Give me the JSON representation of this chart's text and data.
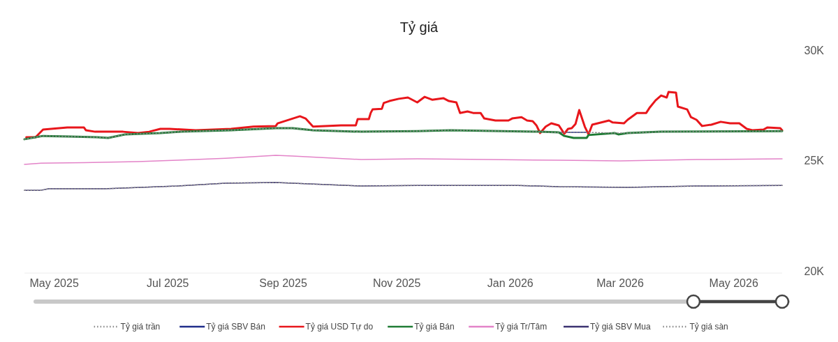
{
  "chart_data": {
    "type": "line",
    "title": "Tỷ giá",
    "legend": "bottom",
    "grid": false,
    "xlim": [
      "2025-04-15",
      "2026-05-27"
    ],
    "xticks": [
      {
        "value": "2025-05-01",
        "label": "May 2025"
      },
      {
        "value": "2025-07-01",
        "label": "Jul 2025"
      },
      {
        "value": "2025-09-01",
        "label": "Sep 2025"
      },
      {
        "value": "2025-11-01",
        "label": "Nov 2025"
      },
      {
        "value": "2026-01-01",
        "label": "Jan 2026"
      },
      {
        "value": "2026-03-01",
        "label": "Mar 2026"
      },
      {
        "value": "2026-05-01",
        "label": "May 2026"
      }
    ],
    "ylim": [
      20000,
      30000
    ],
    "yticks": [
      {
        "value": 20000,
        "label": "20K"
      },
      {
        "value": 25000,
        "label": "25K"
      },
      {
        "value": 30000,
        "label": "30K"
      }
    ],
    "series": [
      {
        "name": "Tỷ giá trần",
        "color": "#8a8a8a",
        "line_style": "dotted",
        "x": [
          "2025-04-15",
          "2025-04-21",
          "2025-04-25",
          "2025-05-09",
          "2025-05-24",
          "2025-05-30",
          "2025-06-08",
          "2025-06-27",
          "2025-07-08",
          "2025-08-04",
          "2025-08-28",
          "2025-09-06",
          "2025-09-17",
          "2025-10-13",
          "2025-11-12",
          "2025-11-30",
          "2026-01-16",
          "2026-01-27",
          "2026-01-30",
          "2026-02-04",
          "2026-02-11",
          "2026-02-12",
          "2026-02-26",
          "2026-02-28",
          "2026-03-05",
          "2026-03-23",
          "2026-05-27"
        ],
        "values": [
          26060,
          26150,
          26210,
          26180,
          26150,
          26120,
          26280,
          26340,
          26400,
          26470,
          26560,
          26560,
          26470,
          26400,
          26430,
          26470,
          26400,
          26370,
          26370,
          26370,
          26370,
          26370,
          26340,
          26340,
          26340,
          26400,
          26430
        ]
      },
      {
        "name": "Tỷ giá SBV Bán",
        "color": "#1f2d8a",
        "line_style": "solid",
        "x": [
          "2026-01-27",
          "2026-01-30",
          "2026-02-04",
          "2026-02-11",
          "2026-02-12"
        ],
        "values": [
          26370,
          26370,
          26370,
          26370,
          26370
        ]
      },
      {
        "name": "Tỷ giá USD Tự do",
        "color": "#e8161b",
        "line_style": "solid",
        "x": [
          "2025-04-16",
          "2025-04-21",
          "2025-04-25",
          "2025-05-08",
          "2025-05-17",
          "2025-05-18",
          "2025-05-23",
          "2025-06-07",
          "2025-06-15",
          "2025-06-21",
          "2025-06-27",
          "2025-07-02",
          "2025-07-16",
          "2025-08-04",
          "2025-08-16",
          "2025-08-28",
          "2025-08-29",
          "2025-09-10",
          "2025-09-13",
          "2025-09-17",
          "2025-10-02",
          "2025-10-10",
          "2025-10-11",
          "2025-10-17",
          "2025-10-18",
          "2025-10-19",
          "2025-10-24",
          "2025-10-25",
          "2025-10-28",
          "2025-11-02",
          "2025-11-07",
          "2025-11-12",
          "2025-11-16",
          "2025-11-20",
          "2025-11-26",
          "2025-11-29",
          "2025-12-03",
          "2025-12-05",
          "2025-12-09",
          "2025-12-12",
          "2025-12-16",
          "2025-12-18",
          "2025-12-24",
          "2025-12-31",
          "2026-01-02",
          "2026-01-07",
          "2026-01-10",
          "2026-01-13",
          "2026-01-15",
          "2026-01-17",
          "2026-01-20",
          "2026-01-23",
          "2026-01-27",
          "2026-01-30",
          "2026-02-01",
          "2026-02-03",
          "2026-02-05",
          "2026-02-07",
          "2026-02-10",
          "2026-02-12",
          "2026-02-14",
          "2026-02-23",
          "2026-02-25",
          "2026-03-03",
          "2026-03-05",
          "2026-03-10",
          "2026-03-15",
          "2026-03-17",
          "2026-03-20",
          "2026-03-23",
          "2026-03-26",
          "2026-03-27",
          "2026-03-31",
          "2026-04-01",
          "2026-04-06",
          "2026-04-08",
          "2026-04-11",
          "2026-04-14",
          "2026-04-19",
          "2026-04-24",
          "2026-04-29",
          "2026-05-04",
          "2026-05-08",
          "2026-05-11",
          "2026-05-17",
          "2026-05-19",
          "2026-05-26",
          "2026-05-27"
        ],
        "values": [
          26150,
          26150,
          26500,
          26590,
          26590,
          26470,
          26400,
          26400,
          26340,
          26400,
          26530,
          26530,
          26470,
          26530,
          26630,
          26660,
          26780,
          27100,
          27000,
          26630,
          26690,
          26690,
          26970,
          26970,
          27250,
          27410,
          27440,
          27700,
          27790,
          27890,
          27950,
          27730,
          27980,
          27850,
          27920,
          27790,
          27730,
          27250,
          27320,
          27250,
          27250,
          27000,
          26910,
          26910,
          27000,
          27060,
          26910,
          26880,
          26690,
          26340,
          26630,
          26780,
          26690,
          26310,
          26530,
          26560,
          26750,
          27380,
          26630,
          26280,
          26720,
          26910,
          26820,
          26780,
          26940,
          27250,
          27250,
          27510,
          27820,
          28040,
          27950,
          28200,
          28170,
          27540,
          27410,
          27060,
          26940,
          26660,
          26720,
          26850,
          26780,
          26780,
          26530,
          26470,
          26500,
          26590,
          26560,
          26470
        ]
      },
      {
        "name": "Tỷ giá Bán",
        "color": "#1e7b34",
        "line_style": "solid",
        "x": [
          "2025-04-15",
          "2025-04-21",
          "2025-04-25",
          "2025-05-09",
          "2025-05-24",
          "2025-05-30",
          "2025-06-08",
          "2025-06-27",
          "2025-07-08",
          "2025-08-04",
          "2025-08-28",
          "2025-09-06",
          "2025-09-17",
          "2025-10-13",
          "2025-11-12",
          "2025-11-30",
          "2026-01-16",
          "2026-01-27",
          "2026-01-30",
          "2026-02-04",
          "2026-02-11",
          "2026-02-12",
          "2026-02-26",
          "2026-02-28",
          "2026-03-05",
          "2026-03-23",
          "2026-05-27"
        ],
        "values": [
          26060,
          26150,
          26210,
          26180,
          26150,
          26120,
          26280,
          26340,
          26400,
          26470,
          26560,
          26560,
          26470,
          26400,
          26430,
          26470,
          26400,
          26370,
          26210,
          26120,
          26120,
          26250,
          26340,
          26280,
          26340,
          26400,
          26430
        ]
      },
      {
        "name": "Tỷ giá Tr/Tâm",
        "color": "#e383c8",
        "line_style": "solid",
        "x": [
          "2025-04-15",
          "2025-04-24",
          "2025-05-17",
          "2025-06-15",
          "2025-07-06",
          "2025-08-01",
          "2025-08-28",
          "2025-09-06",
          "2025-10-13",
          "2025-11-12",
          "2025-12-20",
          "2026-01-27",
          "2026-03-01",
          "2026-04-11",
          "2026-05-27"
        ],
        "values": [
          24920,
          24980,
          25000,
          25050,
          25110,
          25200,
          25330,
          25300,
          25140,
          25170,
          25140,
          25110,
          25080,
          25140,
          25170
        ]
      },
      {
        "name": "Tỷ giá SBV Mua",
        "color": "#3b3270",
        "line_style": "solid",
        "x": [
          "2025-04-15",
          "2025-04-24",
          "2025-04-28",
          "2025-05-28",
          "2025-07-06",
          "2025-08-01",
          "2025-08-28",
          "2025-09-06",
          "2025-10-13",
          "2025-11-12",
          "2026-01-05",
          "2026-01-27",
          "2026-03-05",
          "2026-04-11",
          "2026-05-27"
        ],
        "values": [
          23750,
          23750,
          23820,
          23820,
          23940,
          24070,
          24100,
          24070,
          23940,
          23970,
          23970,
          23910,
          23880,
          23940,
          23970
        ]
      },
      {
        "name": "Tỷ giá sàn",
        "color": "#8a8a8a",
        "line_style": "dotted",
        "x": [
          "2025-04-15",
          "2025-04-24",
          "2025-04-28",
          "2025-05-28",
          "2025-07-06",
          "2025-08-01",
          "2025-08-28",
          "2025-09-06",
          "2025-10-13",
          "2025-11-12",
          "2026-01-05",
          "2026-01-27",
          "2026-03-05",
          "2026-04-11",
          "2026-05-27"
        ],
        "values": [
          23750,
          23750,
          23820,
          23820,
          23940,
          24070,
          24100,
          24070,
          23940,
          23970,
          23970,
          23910,
          23880,
          23940,
          23970
        ]
      }
    ]
  }
}
